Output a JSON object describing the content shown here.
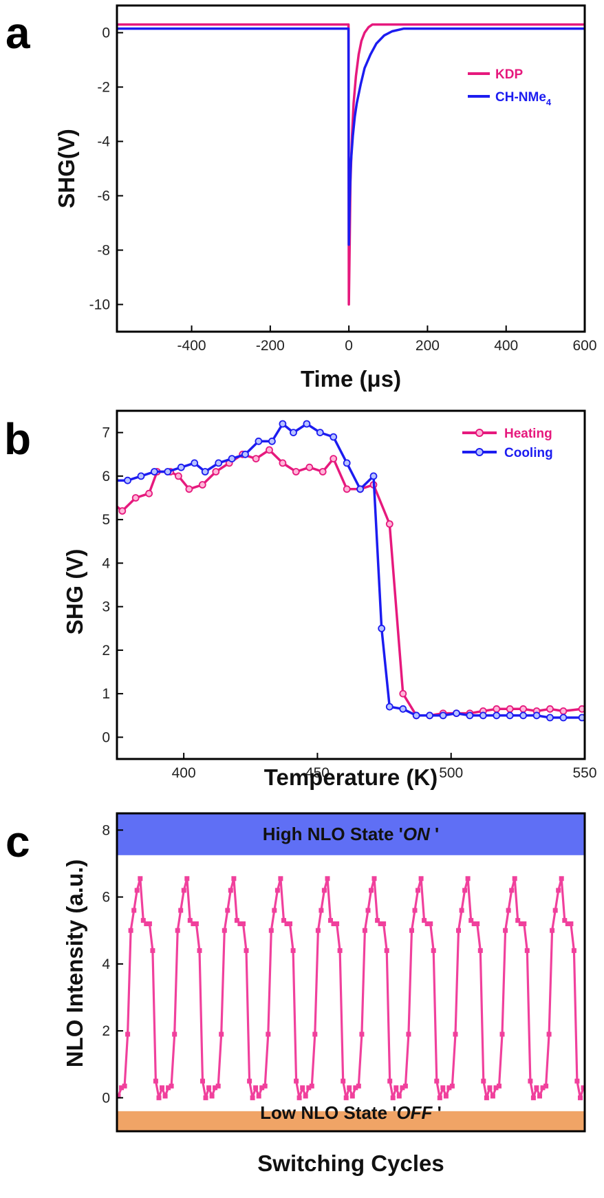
{
  "chart_data": [
    {
      "panel": "a",
      "type": "line",
      "xlabel": "Time (μs)",
      "ylabel": "SHG(V)",
      "xlim": [
        -590,
        600
      ],
      "ylim": [
        -11,
        1.0
      ],
      "xticks": [
        -400,
        -200,
        0,
        200,
        400,
        600
      ],
      "yticks": [
        0,
        -2,
        -4,
        -6,
        -8,
        -10
      ],
      "legend_position": "right",
      "series": [
        {
          "name": "KDP",
          "color": "#e6197d",
          "x": [
            -590,
            -10,
            -1,
            0,
            2,
            4,
            8,
            12,
            18,
            25,
            32,
            40,
            50,
            60,
            600
          ],
          "y": [
            0.3,
            0.3,
            0.3,
            -10.0,
            -7.8,
            -5.5,
            -3.8,
            -2.6,
            -1.6,
            -0.8,
            -0.3,
            0.0,
            0.2,
            0.3,
            0.3
          ]
        },
        {
          "name": "CH-NMe4",
          "color": "#1c1cf0",
          "x": [
            -590,
            -10,
            -1,
            0,
            2,
            5,
            10,
            15,
            20,
            30,
            40,
            55,
            70,
            90,
            110,
            140,
            600
          ],
          "y": [
            0.15,
            0.15,
            0.15,
            -7.8,
            -6.2,
            -4.8,
            -3.8,
            -3.1,
            -2.6,
            -1.9,
            -1.3,
            -0.8,
            -0.4,
            -0.1,
            0.05,
            0.15,
            0.15
          ]
        }
      ]
    },
    {
      "panel": "b",
      "type": "line",
      "xlabel": "Temperature (K)",
      "ylabel": "SHG (V)",
      "xlim": [
        375,
        550
      ],
      "ylim": [
        -0.5,
        7.5
      ],
      "xticks": [
        400,
        450,
        500,
        550
      ],
      "yticks": [
        0,
        1,
        2,
        3,
        4,
        5,
        6,
        7
      ],
      "legend_position": "top-right",
      "series": [
        {
          "name": "Heating",
          "color": "#e6197d",
          "x": [
            375,
            377,
            382,
            387,
            390,
            395,
            398,
            402,
            407,
            412,
            417,
            422,
            427,
            432,
            437,
            442,
            447,
            452,
            456,
            461,
            466,
            471,
            477,
            482,
            487,
            492,
            497,
            502,
            507,
            512,
            517,
            522,
            527,
            532,
            537,
            542,
            549
          ],
          "y": [
            5.3,
            5.2,
            5.5,
            5.6,
            6.1,
            6.1,
            6.0,
            5.7,
            5.8,
            6.1,
            6.3,
            6.5,
            6.4,
            6.6,
            6.3,
            6.1,
            6.2,
            6.1,
            6.4,
            5.7,
            5.7,
            5.8,
            4.9,
            1.0,
            0.5,
            0.5,
            0.55,
            0.55,
            0.55,
            0.6,
            0.65,
            0.65,
            0.65,
            0.6,
            0.65,
            0.6,
            0.65
          ]
        },
        {
          "name": "Cooling",
          "color": "#1c1cf0",
          "x": [
            375,
            379,
            384,
            389,
            394,
            399,
            404,
            408,
            413,
            418,
            423,
            428,
            433,
            437,
            441,
            446,
            451,
            456,
            461,
            466,
            471,
            474,
            477,
            482,
            487,
            492,
            497,
            502,
            507,
            512,
            517,
            522,
            527,
            532,
            537,
            542,
            549
          ],
          "y": [
            5.9,
            5.9,
            6.0,
            6.1,
            6.1,
            6.2,
            6.3,
            6.1,
            6.3,
            6.4,
            6.5,
            6.8,
            6.8,
            7.2,
            7.0,
            7.2,
            7.0,
            6.9,
            6.3,
            5.7,
            6.0,
            2.5,
            0.7,
            0.65,
            0.5,
            0.5,
            0.5,
            0.55,
            0.5,
            0.5,
            0.5,
            0.5,
            0.5,
            0.5,
            0.45,
            0.45,
            0.45
          ]
        }
      ]
    },
    {
      "panel": "c",
      "type": "line",
      "xlabel": "Switching Cycles",
      "ylabel": "NLO Intensity (a.u.)",
      "ylim": [
        -1.0,
        8.5
      ],
      "yticks": [
        0,
        2,
        4,
        6,
        8
      ],
      "series": [
        {
          "name": "",
          "color": "#f0409c",
          "cycles": 10,
          "cycle_profile": [
            0.05,
            0.3,
            0.35,
            1.9,
            5.0,
            5.6,
            6.2,
            6.55,
            5.3,
            5.2,
            5.2,
            4.4,
            0.5,
            0.0,
            0.3
          ]
        }
      ],
      "bands": [
        {
          "label": "High NLO State",
          "state": "ON",
          "color": "#5f6ff5",
          "y_range": [
            7.25,
            8.5
          ]
        },
        {
          "label": "Low NLO State",
          "state": "OFF",
          "color": "#f0a466",
          "y_range": [
            -1.0,
            -0.4
          ]
        }
      ]
    }
  ],
  "panel_labels": {
    "a": "a",
    "b": "b",
    "c": "c"
  },
  "legends": {
    "a": [
      "KDP",
      "CH-NMe"
    ],
    "a_subscript": "4",
    "b": [
      "Heating",
      "Cooling"
    ]
  },
  "bands_text": {
    "on_prefix": "High NLO State  '",
    "on_word": "ON",
    "on_suffix": " '",
    "off_prefix": "Low NLO State  '",
    "off_word": "OFF",
    "off_suffix": " '"
  }
}
